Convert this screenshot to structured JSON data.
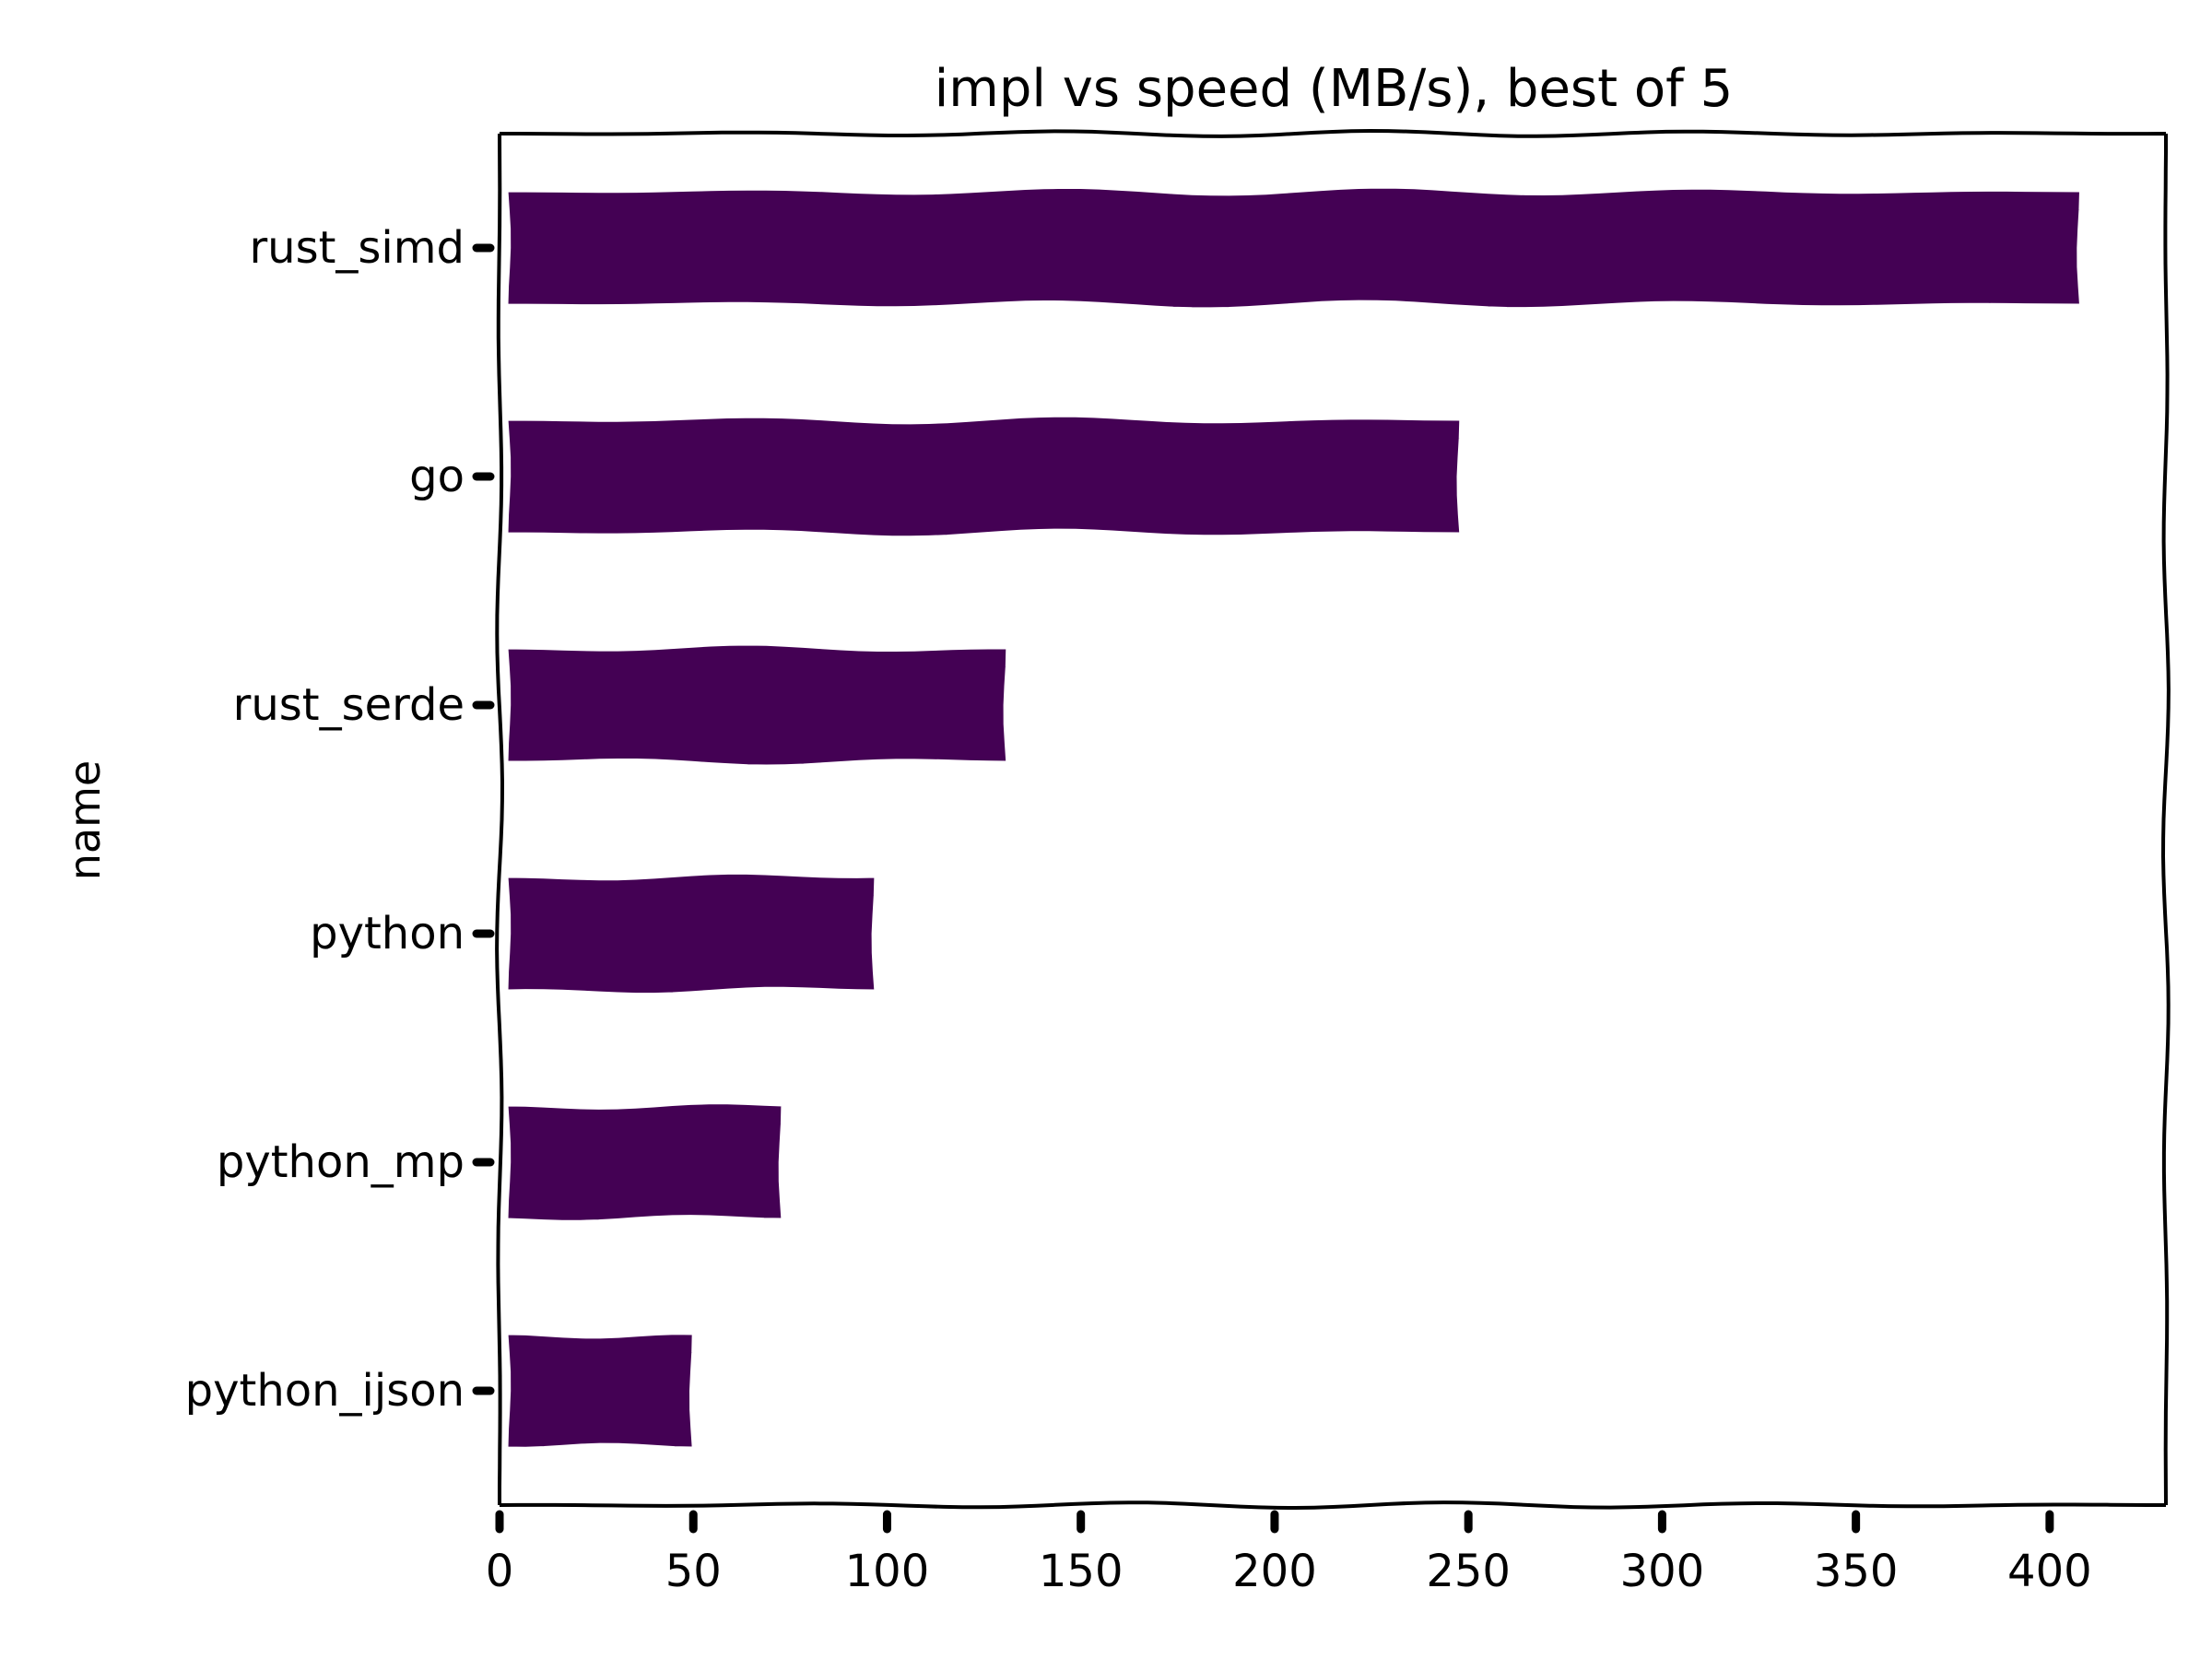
{
  "chart_data": {
    "type": "bar",
    "orientation": "horizontal",
    "title": "impl vs speed (MB/s), best of 5",
    "xlabel": "",
    "ylabel": "name",
    "categories": [
      "rust_simd",
      "go",
      "rust_serde",
      "python",
      "python_mp",
      "python_ijson"
    ],
    "values": [
      408,
      248,
      131,
      97,
      73,
      50
    ],
    "xlim": [
      0,
      430
    ],
    "xticks": [
      0,
      50,
      100,
      150,
      200,
      250,
      300,
      350,
      400
    ],
    "bar_color": "#440154",
    "grid": false,
    "legend": "none"
  }
}
